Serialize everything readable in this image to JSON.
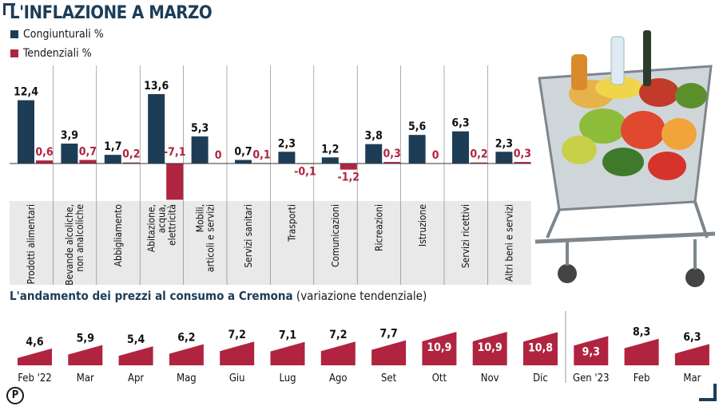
{
  "title": "L'INFLAZIONE A MARZO",
  "legend": [
    {
      "label": "Congiunturali %",
      "color": "#1d3d57"
    },
    {
      "label": "Tendenziali %",
      "color": "#b02440"
    }
  ],
  "subtitle_bold": "L'andamento dei prezzi al consumo a Cremona",
  "subtitle_note": "(variazione tendenziale)",
  "logo_text": "P",
  "chart_data": [
    {
      "type": "bar",
      "categories": [
        "Prodotti alimentari",
        "Bevande alcoliche, non analcoliche",
        "Abbigliamento",
        "Abitazione, acqua, elettricità",
        "Mobili, articoli e servizi",
        "Servizi sanitari",
        "Trasporti",
        "Comunicazioni",
        "Ricreazioni",
        "Istruzione",
        "Servizi ricettivi",
        "Altri beni e servizi"
      ],
      "series": [
        {
          "name": "Congiunturali %",
          "values": [
            12.4,
            3.9,
            1.7,
            13.6,
            5.3,
            0.7,
            2.3,
            1.2,
            3.8,
            5.6,
            6.3,
            2.3
          ],
          "labels": [
            "12,4",
            "3,9",
            "1,7",
            "13,6",
            "5,3",
            "0,7",
            "2,3",
            "1,2",
            "3,8",
            "5,6",
            "6,3",
            "2,3"
          ]
        },
        {
          "name": "Tendenziali %",
          "values": [
            0.6,
            0.7,
            0.2,
            -7.1,
            0,
            0.1,
            -0.1,
            -1.2,
            0.3,
            0,
            0.2,
            0.3
          ],
          "labels": [
            "0,6",
            "0,7",
            "0,2",
            "-7,1",
            "0",
            "0,1",
            "-0,1",
            "-1,2",
            "0,3",
            "0",
            "0,2",
            "0,3"
          ]
        }
      ]
    },
    {
      "type": "area",
      "categories": [
        "Feb '22",
        "Mar",
        "Apr",
        "Mag",
        "Giu",
        "Lug",
        "Ago",
        "Set",
        "Ott",
        "Nov",
        "Dic",
        "Gen '23",
        "Feb",
        "Mar"
      ],
      "values": [
        4.6,
        5.9,
        5.4,
        6.2,
        7.2,
        7.1,
        7.2,
        7.7,
        10.9,
        10.9,
        10.8,
        9.3,
        8.3,
        6.3
      ],
      "labels": [
        "4,6",
        "5,9",
        "5,4",
        "6,2",
        "7,2",
        "7,1",
        "7,2",
        "7,7",
        "10,9",
        "10,9",
        "10,8",
        "9,3",
        "8,3",
        "6,3"
      ]
    }
  ]
}
